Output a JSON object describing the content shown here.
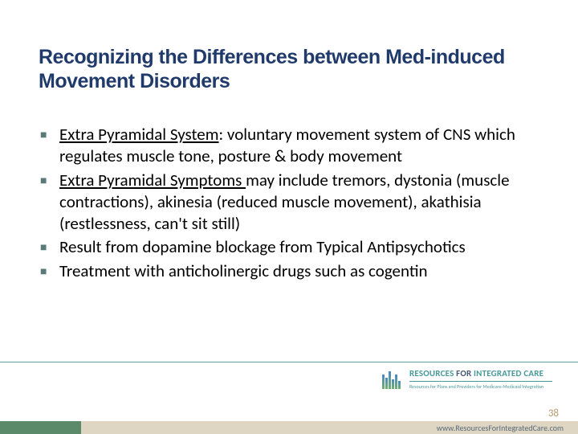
{
  "slide": {
    "title": "Recognizing the Differences between Med-induced Movement Disorders",
    "title_color": "#1f3a6b",
    "title_fontsize": 25,
    "body_fontsize": 21,
    "body_color": "#000000",
    "bullet_color": "#5a7a7a",
    "bullets": [
      {
        "underlined": "Extra Pyramidal System",
        "rest": ": voluntary movement system of CNS which regulates muscle tone, posture & body movement"
      },
      {
        "underlined": "Extra Pyramidal Symptoms ",
        "rest": "may include tremors, dystonia (muscle contractions), akinesia (reduced muscle movement), akathisia (restlessness, can't sit still)"
      },
      {
        "underlined": "",
        "rest": "Result from dopamine blockage from Typical Antipsychotics"
      },
      {
        "underlined": "",
        "rest": "Treatment with anticholinergic drugs such as cogentin"
      }
    ]
  },
  "footer": {
    "logo_top_a": "RESOURCES",
    "logo_top_b": " FOR ",
    "logo_top_c": "INTEGRATED CARE",
    "logo_bottom": "Resources for Plans and Providers for Medicare-Medicaid Integration",
    "page_number": "38",
    "url": "www.ResourcesForIntegratedCare.com",
    "bar_colors": {
      "left": "#5a8a6a",
      "right": "#ded6c2"
    }
  }
}
